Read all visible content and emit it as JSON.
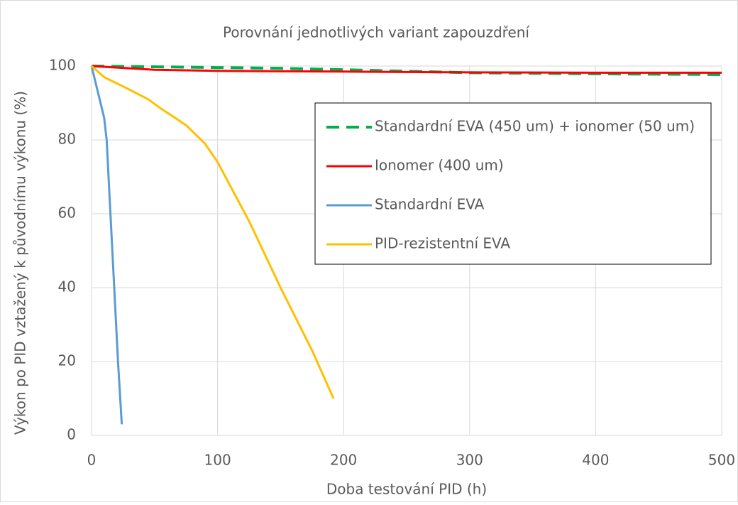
{
  "chart_data": {
    "type": "line",
    "title": "Porovnání jednotlivých variant zapouzdření",
    "xlabel": "Doba testování PID (h)",
    "ylabel": "Výkon po PID vztažený k původnímu výkonu (%)",
    "xlim": [
      0,
      500
    ],
    "xticks": [
      0,
      100,
      200,
      300,
      400,
      500
    ],
    "ylim": [
      0,
      100
    ],
    "yticks": [
      0,
      20,
      40,
      60,
      80,
      100
    ],
    "grid": true,
    "legend": "upper right",
    "series": [
      {
        "name": "Standardní EVA (450 um) + ionomer (50 um)",
        "color": "#00b050",
        "dash": true,
        "x": [
          0,
          50,
          100,
          150,
          200,
          300,
          400,
          500
        ],
        "values": [
          100,
          99.8,
          99.6,
          99.4,
          99,
          98.2,
          97.9,
          97.7
        ]
      },
      {
        "name": "Ionomer (400 um)",
        "color": "#ff0000",
        "x": [
          0,
          25,
          50,
          100,
          200,
          300,
          400,
          500
        ],
        "values": [
          100,
          99.5,
          99,
          98.7,
          98.5,
          98.3,
          98.2,
          98.2
        ]
      },
      {
        "name": "Standardní EVA",
        "color": "#5b9bd5",
        "x": [
          0,
          5,
          10,
          12,
          15,
          18,
          21,
          24
        ],
        "values": [
          100,
          93,
          86,
          80,
          60,
          40,
          20,
          3
        ]
      },
      {
        "name": "PID-rezistentní EVA",
        "color": "#ffc000",
        "x": [
          0,
          10,
          25,
          45,
          55,
          75,
          90,
          100,
          125,
          150,
          175,
          192
        ],
        "values": [
          100,
          97,
          94.5,
          91,
          88.5,
          84,
          79,
          74,
          58,
          40,
          23,
          10
        ]
      }
    ]
  }
}
